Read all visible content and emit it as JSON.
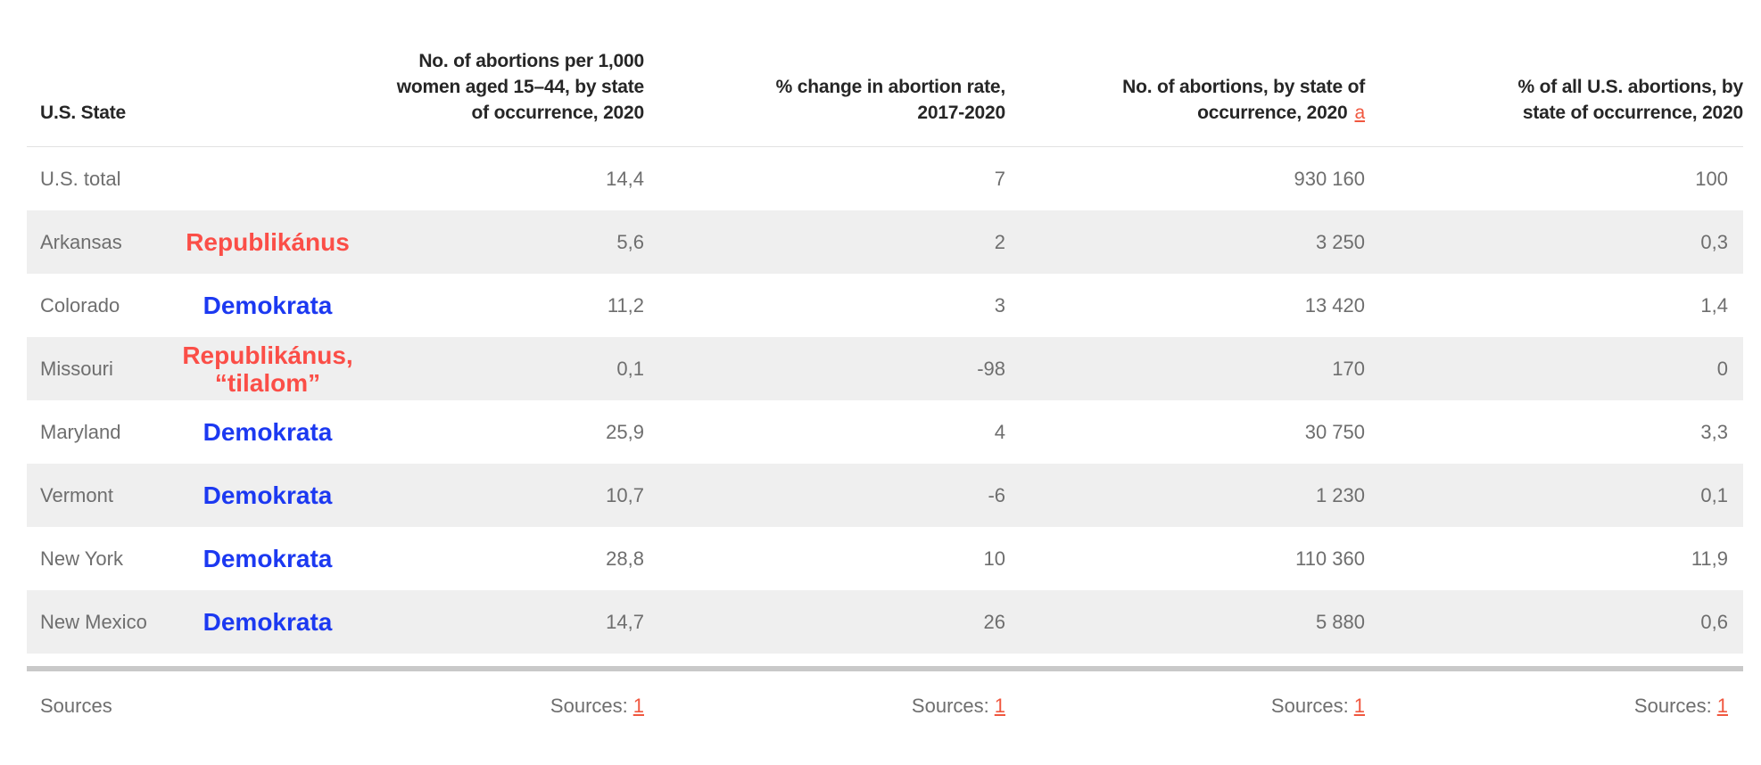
{
  "colors": {
    "republican_red": "#fb4e47",
    "democrat_blue": "#1c39f1",
    "link_orange": "#f0573f",
    "row_stripe": "#efefef",
    "bottom_bar": "#c9c9c9",
    "header_text": "#262626",
    "body_text": "#6e6e6e"
  },
  "chart_data": {
    "type": "table",
    "columns": [
      "U.S. State",
      "",
      "No. of abortions per 1,000 women aged 15–44, by state of occurrence, 2020",
      "% change in abortion rate, 2017-2020",
      "No. of abortions, by state of occurrence, 2020",
      "% of all U.S. abortions, by state of occurrence, 2020"
    ],
    "header_lines": {
      "rate": [
        "No. of abortions per 1,000",
        "women aged 15–44, by state",
        "of occurrence, 2020"
      ],
      "change": [
        "% change in abortion rate,",
        "2017-2020"
      ],
      "count": [
        "No. of abortions, by state of",
        "occurrence, 2020"
      ],
      "count_footnote": "a",
      "share": [
        "% of all U.S. abortions, by",
        "state of occurrence, 2020"
      ]
    },
    "rows": [
      {
        "state": "U.S. total",
        "party_lines": [],
        "party_color": "",
        "rate": "14,4",
        "change": "7",
        "count": "930 160",
        "share": "100"
      },
      {
        "state": "Arkansas",
        "party_lines": [
          "Republikánus"
        ],
        "party_color": "red",
        "rate": "5,6",
        "change": "2",
        "count": "3 250",
        "share": "0,3"
      },
      {
        "state": "Colorado",
        "party_lines": [
          "Demokrata"
        ],
        "party_color": "blue",
        "rate": "11,2",
        "change": "3",
        "count": "13 420",
        "share": "1,4"
      },
      {
        "state": "Missouri",
        "party_lines": [
          "Republikánus,",
          "“tilalom”"
        ],
        "party_color": "red",
        "rate": "0,1",
        "change": "-98",
        "count": "170",
        "share": "0"
      },
      {
        "state": "Maryland",
        "party_lines": [
          "Demokrata"
        ],
        "party_color": "blue",
        "rate": "25,9",
        "change": "4",
        "count": "30 750",
        "share": "3,3"
      },
      {
        "state": "Vermont",
        "party_lines": [
          "Demokrata"
        ],
        "party_color": "blue",
        "rate": "10,7",
        "change": "-6",
        "count": "1 230",
        "share": "0,1"
      },
      {
        "state": "New York",
        "party_lines": [
          "Demokrata"
        ],
        "party_color": "blue",
        "rate": "28,8",
        "change": "10",
        "count": "110 360",
        "share": "11,9"
      },
      {
        "state": "New Mexico",
        "party_lines": [
          "Demokrata"
        ],
        "party_color": "blue",
        "rate": "14,7",
        "change": "26",
        "count": "5 880",
        "share": "0,6"
      }
    ]
  },
  "sources": {
    "label": "Sources",
    "cell_label": "Sources:",
    "link_text": "1"
  }
}
